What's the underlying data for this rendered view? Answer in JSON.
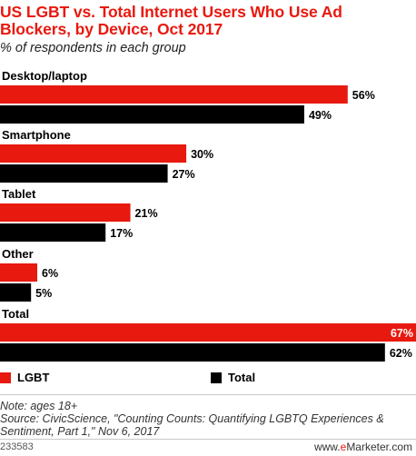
{
  "header": {
    "title": "US LGBT vs. Total Internet Users Who Use Ad Blockers, by Device, Oct 2017",
    "subtitle": "% of respondents in each group"
  },
  "colors": {
    "lgbt": "#e8190f",
    "total": "#000000",
    "accent": "#e8190f"
  },
  "chart_data": {
    "type": "bar",
    "orientation": "horizontal",
    "categories": [
      "Desktop/laptop",
      "Smartphone",
      "Tablet",
      "Other",
      "Total"
    ],
    "series": [
      {
        "name": "LGBT",
        "values": [
          56,
          30,
          21,
          6,
          67
        ]
      },
      {
        "name": "Total",
        "values": [
          49,
          27,
          17,
          5,
          62
        ]
      }
    ],
    "value_suffix": "%",
    "xlim": [
      0,
      67
    ],
    "grid": false,
    "legend_position": "bottom-left"
  },
  "legend": {
    "items": [
      "LGBT",
      "Total"
    ]
  },
  "footer": {
    "note": "Note: ages 18+",
    "source": "Source: CivicScience, \"Counting Counts: Quantifying LGBTQ Experiences & Sentiment, Part 1,\" Nov 6, 2017",
    "chart_id": "233583",
    "brand_prefix": "www.",
    "brand_accent": "e",
    "brand_suffix": "Marketer.com"
  }
}
